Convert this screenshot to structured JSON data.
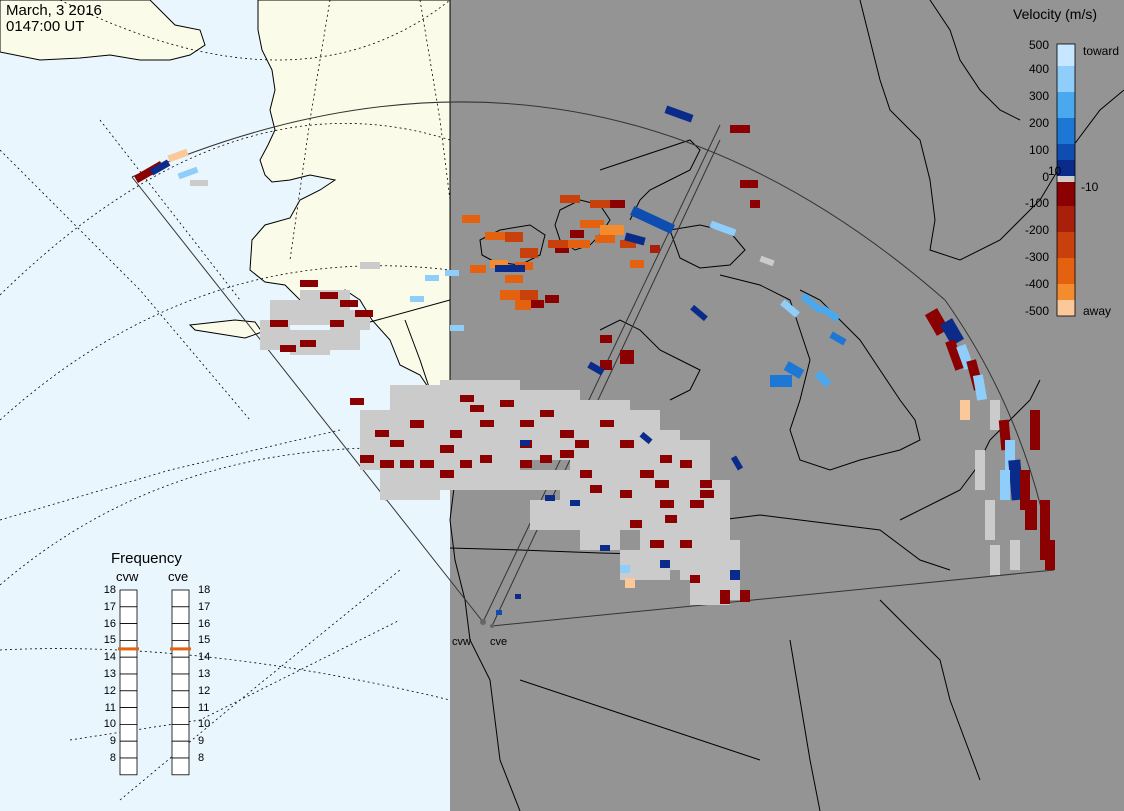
{
  "header": {
    "date": "March, 3 2016",
    "time": "0147:00 UT"
  },
  "velocity_scale": {
    "title": "Velocity (m/s)",
    "toward_label": "toward",
    "away_label": "away",
    "ticks": [
      "500",
      "400",
      "300",
      "200",
      "100",
      "10",
      "0",
      "-10",
      "-100",
      "-200",
      "-300",
      "-400",
      "-500"
    ]
  },
  "frequency": {
    "title": "Frequency",
    "sites": [
      "cvw",
      "cve"
    ],
    "levels": [
      "18",
      "17",
      "16",
      "15",
      "14",
      "13",
      "12",
      "11",
      "10",
      "9",
      "8"
    ],
    "selected": {
      "cvw": 15,
      "cve": 15
    }
  },
  "radars": [
    {
      "name": "cvw"
    },
    {
      "name": "cve"
    }
  ],
  "colors": {
    "land_day": "#fbfbe9",
    "ocean_day": "#eaf6fe",
    "night": "#949494",
    "ground_scatter": "#cbcbcb",
    "toward_colors": [
      "#c6e7ff",
      "#8fcdfa",
      "#4aa8ee",
      "#1d77d4",
      "#0f4db0",
      "#0a2b8a"
    ],
    "away_colors": [
      "#8b0000",
      "#a81f0a",
      "#c8400b",
      "#e4620f",
      "#f48b2d",
      "#fbc89a"
    ]
  }
}
